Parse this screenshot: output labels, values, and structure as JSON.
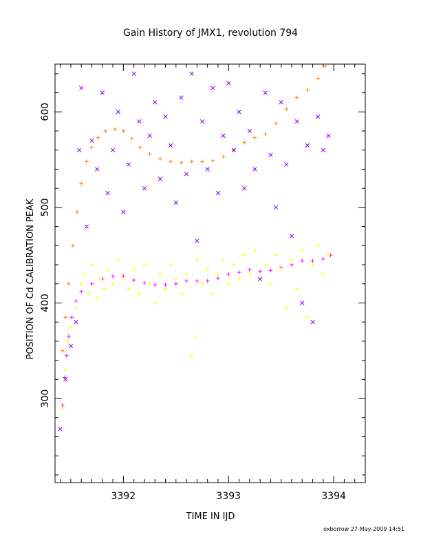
{
  "chart_data": {
    "type": "scatter",
    "title": "Gain History of JMX1, revolution 794",
    "xlabel": "TIME IN IJD",
    "ylabel": "POSITION OF Cd CALIBRATION PEAK",
    "footer": "oxborrow 27-May-2009 14:51",
    "xlim": [
      3391.35,
      3394.3
    ],
    "ylim": [
      212,
      650
    ],
    "x_ticks": [
      3392,
      3393,
      3394
    ],
    "y_ticks": [
      300,
      400,
      500,
      600
    ],
    "grid": false,
    "legend": "none",
    "series": [
      {
        "color": "#ff7f00",
        "marker": "plus",
        "points": [
          [
            3391.42,
            350
          ],
          [
            3391.45,
            385
          ],
          [
            3391.48,
            420
          ],
          [
            3391.52,
            460
          ],
          [
            3391.56,
            495
          ],
          [
            3391.6,
            525
          ],
          [
            3391.65,
            548
          ],
          [
            3391.7,
            563
          ],
          [
            3391.76,
            573
          ],
          [
            3391.83,
            580
          ],
          [
            3391.92,
            582
          ],
          [
            3392.0,
            580
          ],
          [
            3392.08,
            572
          ],
          [
            3392.16,
            563
          ],
          [
            3392.25,
            556
          ],
          [
            3392.35,
            551
          ],
          [
            3392.45,
            548
          ],
          [
            3392.55,
            547
          ],
          [
            3392.65,
            548
          ],
          [
            3392.75,
            548
          ],
          [
            3392.85,
            549
          ],
          [
            3392.95,
            553
          ],
          [
            3393.05,
            560
          ],
          [
            3393.15,
            568
          ],
          [
            3393.25,
            573
          ],
          [
            3393.35,
            577
          ],
          [
            3393.45,
            588
          ],
          [
            3393.55,
            603
          ],
          [
            3393.65,
            615
          ],
          [
            3393.75,
            623
          ],
          [
            3393.85,
            635
          ],
          [
            3393.92,
            648
          ]
        ]
      },
      {
        "color": "#ff00ff",
        "marker": "plus",
        "points": [
          [
            3391.42,
            293
          ],
          [
            3391.44,
            322
          ],
          [
            3391.46,
            345
          ],
          [
            3391.48,
            365
          ],
          [
            3391.51,
            385
          ],
          [
            3391.55,
            402
          ],
          [
            3391.6,
            412
          ],
          [
            3391.7,
            420
          ],
          [
            3391.8,
            425
          ],
          [
            3391.9,
            428
          ],
          [
            3392.0,
            428
          ],
          [
            3392.1,
            424
          ],
          [
            3392.2,
            421
          ],
          [
            3392.3,
            419
          ],
          [
            3392.4,
            419
          ],
          [
            3392.5,
            420
          ],
          [
            3392.6,
            423
          ],
          [
            3392.7,
            423
          ],
          [
            3392.8,
            423
          ],
          [
            3392.9,
            426
          ],
          [
            3393.0,
            430
          ],
          [
            3393.1,
            432
          ],
          [
            3393.2,
            435
          ],
          [
            3393.3,
            433
          ],
          [
            3393.4,
            434
          ],
          [
            3393.5,
            437
          ],
          [
            3393.6,
            440
          ],
          [
            3393.7,
            444
          ],
          [
            3393.8,
            444
          ],
          [
            3393.9,
            446
          ],
          [
            3393.97,
            450
          ]
        ]
      },
      {
        "color": "#ffff00",
        "marker": "plus",
        "points": [
          [
            3391.43,
            290
          ],
          [
            3391.45,
            330
          ],
          [
            3391.47,
            360
          ],
          [
            3391.5,
            375
          ],
          [
            3391.55,
            395
          ],
          [
            3391.6,
            420
          ],
          [
            3391.63,
            430
          ],
          [
            3391.67,
            410
          ],
          [
            3391.7,
            440
          ],
          [
            3391.75,
            405
          ],
          [
            3391.78,
            425
          ],
          [
            3391.82,
            415
          ],
          [
            3391.85,
            435
          ],
          [
            3391.9,
            420
          ],
          [
            3391.95,
            445
          ],
          [
            3392.0,
            425
          ],
          [
            3392.05,
            415
          ],
          [
            3392.1,
            435
          ],
          [
            3392.15,
            410
          ],
          [
            3392.2,
            440
          ],
          [
            3392.25,
            420
          ],
          [
            3392.3,
            400
          ],
          [
            3392.35,
            430
          ],
          [
            3392.4,
            415
          ],
          [
            3392.45,
            440
          ],
          [
            3392.5,
            425
          ],
          [
            3392.55,
            410
          ],
          [
            3392.6,
            430
          ],
          [
            3392.65,
            345
          ],
          [
            3392.68,
            365
          ],
          [
            3392.7,
            445
          ],
          [
            3392.75,
            420
          ],
          [
            3392.8,
            435
          ],
          [
            3392.85,
            410
          ],
          [
            3392.9,
            430
          ],
          [
            3392.95,
            445
          ],
          [
            3393.0,
            420
          ],
          [
            3393.05,
            440
          ],
          [
            3393.1,
            425
          ],
          [
            3393.15,
            450
          ],
          [
            3393.2,
            430
          ],
          [
            3393.25,
            455
          ],
          [
            3393.3,
            425
          ],
          [
            3393.35,
            440
          ],
          [
            3393.4,
            420
          ],
          [
            3393.45,
            450
          ],
          [
            3393.5,
            435
          ],
          [
            3393.55,
            395
          ],
          [
            3393.6,
            445
          ],
          [
            3393.65,
            415
          ],
          [
            3393.7,
            455
          ],
          [
            3393.75,
            385
          ],
          [
            3393.8,
            440
          ],
          [
            3393.85,
            460
          ],
          [
            3393.9,
            430
          ],
          [
            3393.95,
            450
          ]
        ]
      },
      {
        "color": "#7f00ff",
        "marker": "cross",
        "points": [
          [
            3391.4,
            268
          ],
          [
            3391.45,
            320
          ],
          [
            3391.5,
            355
          ],
          [
            3391.55,
            380
          ],
          [
            3391.58,
            560
          ],
          [
            3391.6,
            625
          ],
          [
            3391.65,
            480
          ],
          [
            3391.7,
            570
          ],
          [
            3391.75,
            540
          ],
          [
            3391.8,
            620
          ],
          [
            3391.85,
            515
          ],
          [
            3391.9,
            560
          ],
          [
            3391.95,
            600
          ],
          [
            3392.0,
            495
          ],
          [
            3392.05,
            545
          ],
          [
            3392.1,
            640
          ],
          [
            3392.15,
            590
          ],
          [
            3392.2,
            520
          ],
          [
            3392.25,
            575
          ],
          [
            3392.3,
            610
          ],
          [
            3392.35,
            530
          ],
          [
            3392.4,
            595
          ],
          [
            3392.45,
            565
          ],
          [
            3392.5,
            505
          ],
          [
            3392.55,
            615
          ],
          [
            3392.6,
            535
          ],
          [
            3392.65,
            640
          ],
          [
            3392.7,
            465
          ],
          [
            3392.75,
            590
          ],
          [
            3392.8,
            540
          ],
          [
            3392.85,
            625
          ],
          [
            3392.9,
            515
          ],
          [
            3392.95,
            575
          ],
          [
            3393.0,
            630
          ],
          [
            3393.05,
            560
          ],
          [
            3393.1,
            600
          ],
          [
            3393.15,
            520
          ],
          [
            3393.2,
            580
          ],
          [
            3393.25,
            540
          ],
          [
            3393.3,
            425
          ],
          [
            3393.35,
            620
          ],
          [
            3393.4,
            555
          ],
          [
            3393.45,
            500
          ],
          [
            3393.5,
            610
          ],
          [
            3393.55,
            545
          ],
          [
            3393.6,
            470
          ],
          [
            3393.65,
            590
          ],
          [
            3393.7,
            400
          ],
          [
            3393.75,
            565
          ],
          [
            3393.8,
            380
          ],
          [
            3393.85,
            595
          ],
          [
            3393.9,
            560
          ],
          [
            3393.95,
            575
          ]
        ]
      }
    ]
  }
}
